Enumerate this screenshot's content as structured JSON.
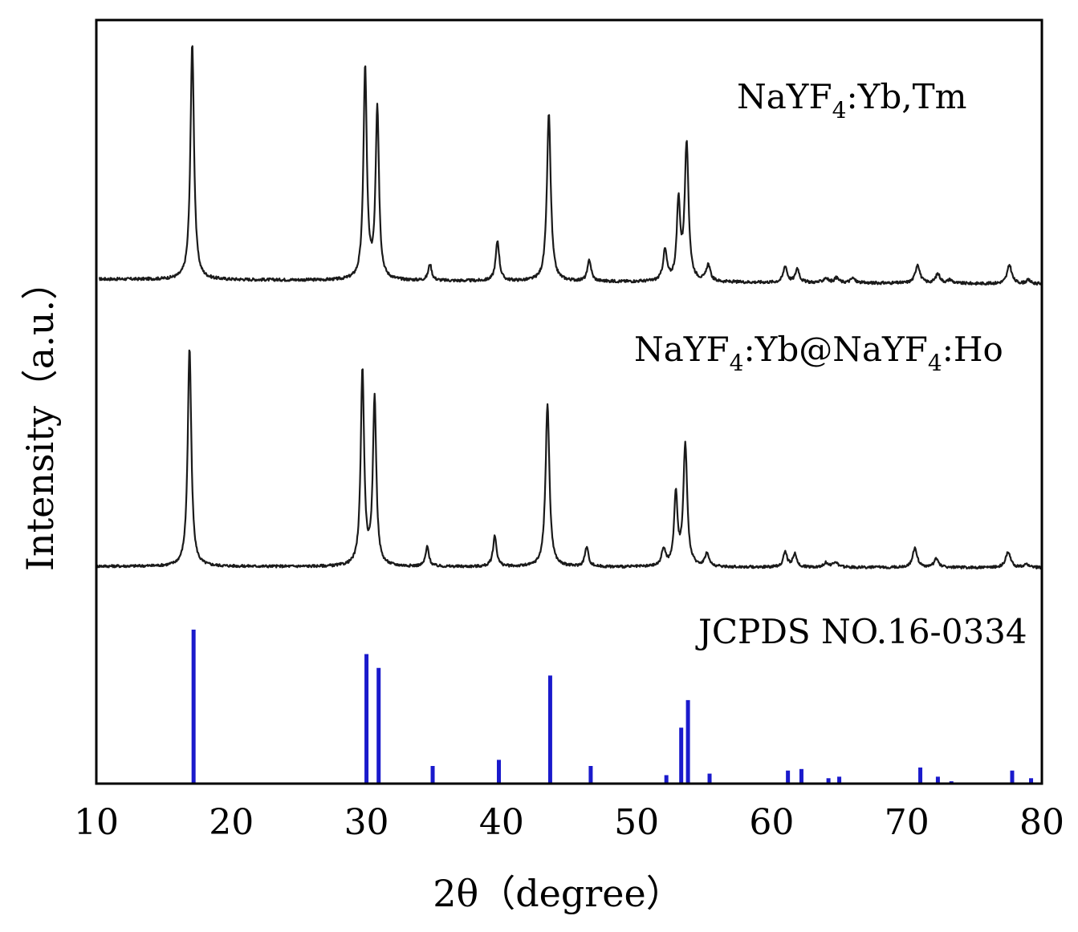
{
  "chart_data": {
    "type": "line",
    "title": "",
    "xlabel": "2θ（degree）",
    "ylabel": "Intensity（a.u.）",
    "xlim": [
      10,
      80
    ],
    "xticks": [
      10,
      20,
      30,
      40,
      50,
      60,
      70,
      80
    ],
    "xtick_labels": [
      "10",
      "20",
      "30",
      "40",
      "50",
      "60",
      "70",
      "80"
    ],
    "yticks": [],
    "grid": false,
    "colors": {
      "pattern": "#1a1a1a",
      "reference": "#1a1acc",
      "frame": "#000000"
    },
    "series": [
      {
        "name": "NaYF4:Yb,Tm",
        "label_main": "NaYF",
        "label_sub": "4",
        "label_rest": ":Yb,Tm",
        "kind": "pattern",
        "baseline_start": 15,
        "baseline_end": 13,
        "x_start": 10.2,
        "x_end": 80,
        "peaks": [
          {
            "x": 17.1,
            "h": 100,
            "w": 0.16
          },
          {
            "x": 29.9,
            "h": 90,
            "w": 0.15
          },
          {
            "x": 30.8,
            "h": 73,
            "w": 0.15
          },
          {
            "x": 34.7,
            "h": 7,
            "w": 0.15
          },
          {
            "x": 39.7,
            "h": 17,
            "w": 0.16
          },
          {
            "x": 43.5,
            "h": 71,
            "w": 0.17
          },
          {
            "x": 46.5,
            "h": 9,
            "w": 0.16
          },
          {
            "x": 52.1,
            "h": 13,
            "w": 0.17
          },
          {
            "x": 53.1,
            "h": 33,
            "w": 0.15
          },
          {
            "x": 53.7,
            "h": 58,
            "w": 0.17
          },
          {
            "x": 55.3,
            "h": 7,
            "w": 0.18
          },
          {
            "x": 61.0,
            "h": 7,
            "w": 0.17
          },
          {
            "x": 61.9,
            "h": 6,
            "w": 0.17
          },
          {
            "x": 64.0,
            "h": 2,
            "w": 0.2
          },
          {
            "x": 64.8,
            "h": 2,
            "w": 0.2
          },
          {
            "x": 66.0,
            "h": 2,
            "w": 0.2
          },
          {
            "x": 70.8,
            "h": 8,
            "w": 0.2
          },
          {
            "x": 72.3,
            "h": 4,
            "w": 0.2
          },
          {
            "x": 73.2,
            "h": 1.5,
            "w": 0.2
          },
          {
            "x": 77.6,
            "h": 8,
            "w": 0.2
          },
          {
            "x": 79.0,
            "h": 1.5,
            "w": 0.2
          }
        ]
      },
      {
        "name": "NaYF4:Yb@NaYF4:Ho",
        "label_main": "NaYF",
        "label_sub": "4",
        "label_rest": ":Yb@NaYF",
        "label_sub2": "4",
        "label_rest2": ":Ho",
        "kind": "pattern",
        "baseline_start": 15,
        "baseline_end": 13,
        "x_start": 10.0,
        "x_end": 80,
        "peaks": [
          {
            "x": 16.9,
            "h": 100,
            "w": 0.16
          },
          {
            "x": 29.7,
            "h": 90,
            "w": 0.15
          },
          {
            "x": 30.6,
            "h": 77,
            "w": 0.15
          },
          {
            "x": 34.5,
            "h": 9,
            "w": 0.15
          },
          {
            "x": 39.5,
            "h": 14,
            "w": 0.16
          },
          {
            "x": 43.4,
            "h": 75,
            "w": 0.17
          },
          {
            "x": 46.3,
            "h": 9,
            "w": 0.16
          },
          {
            "x": 52.0,
            "h": 8,
            "w": 0.17
          },
          {
            "x": 52.9,
            "h": 33,
            "w": 0.15
          },
          {
            "x": 53.6,
            "h": 56,
            "w": 0.17
          },
          {
            "x": 55.2,
            "h": 6,
            "w": 0.18
          },
          {
            "x": 61.0,
            "h": 7,
            "w": 0.17
          },
          {
            "x": 61.7,
            "h": 6,
            "w": 0.17
          },
          {
            "x": 64.0,
            "h": 2,
            "w": 0.2
          },
          {
            "x": 64.7,
            "h": 2.5,
            "w": 0.2
          },
          {
            "x": 70.6,
            "h": 9,
            "w": 0.2
          },
          {
            "x": 72.2,
            "h": 4,
            "w": 0.2
          },
          {
            "x": 77.5,
            "h": 7,
            "w": 0.22
          },
          {
            "x": 78.9,
            "h": 1.5,
            "w": 0.2
          }
        ]
      },
      {
        "name": "JCPDS NO.16-0334",
        "label_main": "JCPDS NO.16-0334",
        "kind": "reference",
        "positions": [
          17.2,
          30.0,
          30.9,
          34.9,
          39.8,
          43.6,
          46.6,
          52.2,
          53.3,
          53.8,
          55.4,
          61.2,
          62.2,
          64.2,
          65.0,
          71.0,
          72.3,
          73.3,
          77.8,
          79.2
        ],
        "intensities": [
          100,
          84,
          75,
          11,
          15,
          70,
          11,
          5,
          36,
          54,
          6,
          8,
          9,
          3,
          4,
          10,
          4,
          1,
          8,
          3
        ]
      }
    ]
  }
}
